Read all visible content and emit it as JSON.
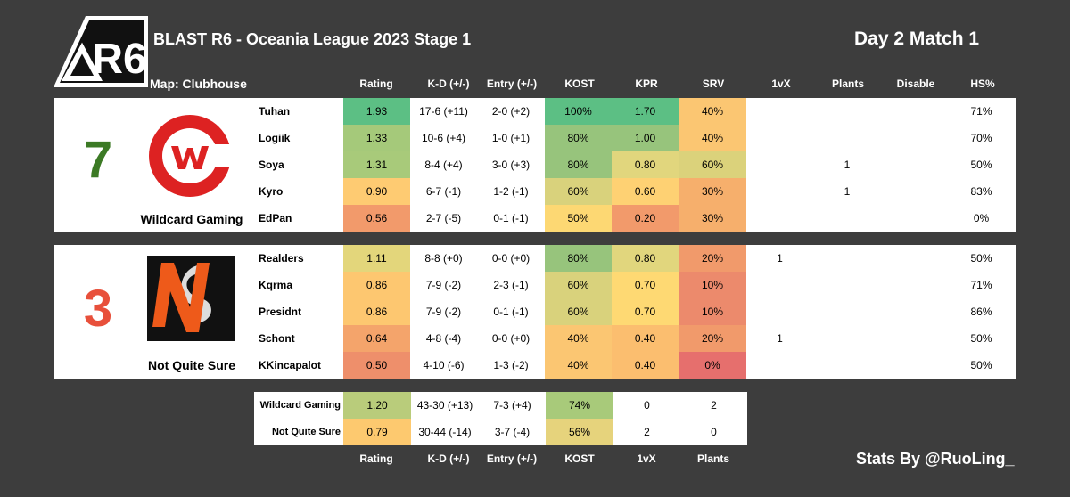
{
  "header": {
    "title": "BLAST R6 - Oceania League 2023 Stage 1",
    "day_match": "Day 2 Match 1",
    "map": "Map: Clubhouse",
    "logo_text": "R6"
  },
  "columns": [
    "Rating",
    "K-D (+/-)",
    "Entry (+/-)",
    "KOST",
    "KPR",
    "SRV",
    "1vX",
    "Plants",
    "Disable",
    "HS%"
  ],
  "teams": [
    {
      "name": "Wildcard Gaming",
      "score": "7",
      "score_color": "#3c7a25",
      "players": [
        {
          "name": "Tuhan",
          "rating": "1.93",
          "kd": "17-6 (+11)",
          "entry": "2-0 (+2)",
          "kost": "100%",
          "kpr": "1.70",
          "srv": "40%",
          "onevx": "",
          "plants": "",
          "disable": "",
          "hs": "71%",
          "colors": {
            "rating": "#5cbf84",
            "kost": "#5cbf84",
            "kpr": "#5cbf84",
            "srv": "#fbc672"
          }
        },
        {
          "name": "Logiik",
          "rating": "1.33",
          "kd": "10-6 (+4)",
          "entry": "1-0 (+1)",
          "kost": "80%",
          "kpr": "1.00",
          "srv": "40%",
          "onevx": "",
          "plants": "",
          "disable": "",
          "hs": "70%",
          "colors": {
            "rating": "#a5c97a",
            "kost": "#97c47c",
            "kpr": "#97c47c",
            "srv": "#fbc672"
          }
        },
        {
          "name": "Soya",
          "rating": "1.31",
          "kd": "8-4 (+4)",
          "entry": "3-0 (+3)",
          "kost": "80%",
          "kpr": "0.80",
          "srv": "60%",
          "onevx": "",
          "plants": "1",
          "disable": "",
          "hs": "50%",
          "colors": {
            "rating": "#a8ca7a",
            "kost": "#97c47c",
            "kpr": "#e1d67d",
            "srv": "#dbd27b"
          }
        },
        {
          "name": "Kyro",
          "rating": "0.90",
          "kd": "6-7 (-1)",
          "entry": "1-2 (-1)",
          "kost": "60%",
          "kpr": "0.60",
          "srv": "30%",
          "onevx": "",
          "plants": "1",
          "disable": "",
          "hs": "83%",
          "colors": {
            "rating": "#fecb72",
            "kost": "#d9d27c",
            "kpr": "#fed173",
            "srv": "#f6af6c"
          }
        },
        {
          "name": "EdPan",
          "rating": "0.56",
          "kd": "2-7 (-5)",
          "entry": "0-1 (-1)",
          "kost": "50%",
          "kpr": "0.20",
          "srv": "30%",
          "onevx": "",
          "plants": "",
          "disable": "",
          "hs": "0%",
          "colors": {
            "rating": "#f29a6b",
            "kost": "#fdd873",
            "kpr": "#f29a6b",
            "srv": "#f6af6c"
          }
        }
      ]
    },
    {
      "name": "Not Quite Sure",
      "score": "3",
      "score_color": "#e8503b",
      "players": [
        {
          "name": "Realders",
          "rating": "1.11",
          "kd": "8-8 (+0)",
          "entry": "0-0 (+0)",
          "kost": "80%",
          "kpr": "0.80",
          "srv": "20%",
          "onevx": "1",
          "plants": "",
          "disable": "",
          "hs": "50%",
          "colors": {
            "rating": "#e3d67b",
            "kost": "#97c47c",
            "kpr": "#e1d67d",
            "srv": "#f19a6b"
          }
        },
        {
          "name": "Kqrma",
          "rating": "0.86",
          "kd": "7-9 (-2)",
          "entry": "2-3 (-1)",
          "kost": "60%",
          "kpr": "0.70",
          "srv": "10%",
          "onevx": "",
          "plants": "",
          "disable": "",
          "hs": "71%",
          "colors": {
            "rating": "#fdc770",
            "kost": "#d9d27c",
            "kpr": "#fed973",
            "srv": "#ec8a6c"
          }
        },
        {
          "name": "Presidnt",
          "rating": "0.86",
          "kd": "7-9 (-2)",
          "entry": "0-1 (-1)",
          "kost": "60%",
          "kpr": "0.70",
          "srv": "10%",
          "onevx": "",
          "plants": "",
          "disable": "",
          "hs": "86%",
          "colors": {
            "rating": "#fdc770",
            "kost": "#d9d27c",
            "kpr": "#fed973",
            "srv": "#ec8a6c"
          }
        },
        {
          "name": "Schont",
          "rating": "0.64",
          "kd": "4-8 (-4)",
          "entry": "0-0 (+0)",
          "kost": "40%",
          "kpr": "0.40",
          "srv": "20%",
          "onevx": "1",
          "plants": "",
          "disable": "",
          "hs": "50%",
          "colors": {
            "rating": "#f4a46b",
            "kost": "#fbc672",
            "kpr": "#fbbe6f",
            "srv": "#f19a6b"
          }
        },
        {
          "name": "KKincapalot",
          "rating": "0.50",
          "kd": "4-10 (-6)",
          "entry": "1-3 (-2)",
          "kost": "40%",
          "kpr": "0.40",
          "srv": "0%",
          "onevx": "",
          "plants": "",
          "disable": "",
          "hs": "50%",
          "colors": {
            "rating": "#ee8f6b",
            "kost": "#fbc672",
            "kpr": "#fbbe6f",
            "srv": "#e66f6d"
          }
        }
      ]
    }
  ],
  "summary": {
    "rows": [
      {
        "name": "Wildcard Gaming",
        "rating": "1.20",
        "kd": "43-30 (+13)",
        "entry": "7-3 (+4)",
        "kost": "74%",
        "onevx": "0",
        "plants": "2",
        "colors": {
          "rating": "#b9cc7b",
          "kost": "#a8ca7a"
        }
      },
      {
        "name": "Not Quite Sure",
        "rating": "0.79",
        "kd": "30-44 (-14)",
        "entry": "3-7 (-4)",
        "kost": "56%",
        "onevx": "2",
        "plants": "0",
        "colors": {
          "rating": "#fdc96f",
          "kost": "#e6d37c"
        }
      }
    ],
    "footer_columns": [
      "Rating",
      "K-D (+/-)",
      "Entry (+/-)",
      "KOST",
      "1vX",
      "Plants"
    ]
  },
  "credit": "Stats By @RuoLing_"
}
